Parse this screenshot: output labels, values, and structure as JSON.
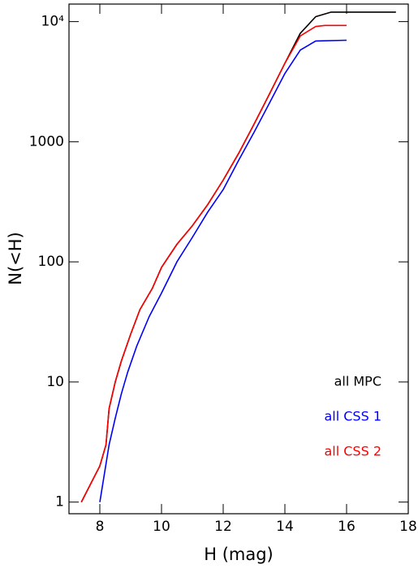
{
  "chart_data": {
    "type": "line",
    "xlabel": "H (mag)",
    "ylabel": "N(<H)",
    "xlim": [
      7,
      18
    ],
    "ylim": [
      0.8,
      14000
    ],
    "log_y": true,
    "xticks": [
      8,
      10,
      12,
      14,
      16,
      18
    ],
    "yticks": [
      1,
      10,
      100,
      1000,
      {
        "value": 10000,
        "label": "10⁴"
      }
    ],
    "legend": "lower right",
    "series": [
      {
        "name": "all MPC",
        "color": "#000000",
        "x": [
          7.4,
          8.0,
          8.2,
          8.3,
          8.5,
          8.7,
          9.0,
          9.3,
          9.7,
          10.0,
          10.5,
          11.0,
          11.5,
          12.0,
          12.5,
          13.0,
          13.5,
          14.0,
          14.5,
          15.0,
          15.5,
          17.6
        ],
        "values": [
          1,
          2,
          3,
          6,
          10,
          15,
          25,
          40,
          60,
          90,
          140,
          200,
          300,
          480,
          800,
          1400,
          2500,
          4500,
          8000,
          11000,
          12000,
          12000
        ]
      },
      {
        "name": "all CSS 1",
        "color": "#0000ff",
        "x": [
          8.0,
          8.3,
          8.5,
          8.7,
          8.9,
          9.2,
          9.6,
          10.0,
          10.5,
          11.0,
          11.5,
          12.0,
          12.5,
          13.0,
          13.5,
          14.0,
          14.5,
          15.0,
          16.0
        ],
        "values": [
          1,
          3,
          5,
          8,
          12,
          20,
          35,
          55,
          100,
          160,
          260,
          400,
          700,
          1200,
          2100,
          3700,
          5800,
          6900,
          7000
        ]
      },
      {
        "name": "all CSS 2",
        "color": "#ff0000",
        "x": [
          7.4,
          8.0,
          8.2,
          8.3,
          8.5,
          8.7,
          9.0,
          9.3,
          9.7,
          10.0,
          10.5,
          11.0,
          11.5,
          12.0,
          12.5,
          13.0,
          13.5,
          14.0,
          14.5,
          15.0,
          15.3,
          16.0
        ],
        "values": [
          1,
          2,
          3,
          6,
          10,
          15,
          25,
          40,
          60,
          90,
          140,
          200,
          300,
          480,
          800,
          1400,
          2500,
          4500,
          7600,
          9100,
          9300,
          9300
        ]
      }
    ]
  }
}
